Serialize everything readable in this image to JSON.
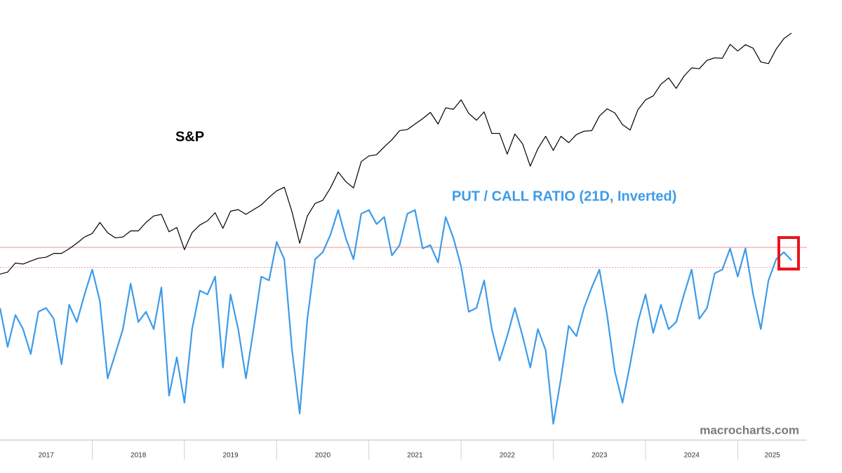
{
  "chart_data": {
    "type": "line",
    "x": [
      2017,
      2017.083,
      2017.167,
      2017.25,
      2017.333,
      2017.417,
      2017.5,
      2017.583,
      2017.667,
      2017.75,
      2017.833,
      2017.917,
      2018,
      2018.083,
      2018.167,
      2018.25,
      2018.333,
      2018.417,
      2018.5,
      2018.583,
      2018.667,
      2018.75,
      2018.833,
      2018.917,
      2019,
      2019.083,
      2019.167,
      2019.25,
      2019.333,
      2019.417,
      2019.5,
      2019.583,
      2019.667,
      2019.75,
      2019.833,
      2019.917,
      2020,
      2020.083,
      2020.167,
      2020.25,
      2020.333,
      2020.417,
      2020.5,
      2020.583,
      2020.667,
      2020.75,
      2020.833,
      2020.917,
      2021,
      2021.083,
      2021.167,
      2021.25,
      2021.333,
      2021.417,
      2021.5,
      2021.583,
      2021.667,
      2021.75,
      2021.833,
      2021.917,
      2022,
      2022.083,
      2022.167,
      2022.25,
      2022.333,
      2022.417,
      2022.5,
      2022.583,
      2022.667,
      2022.75,
      2022.833,
      2022.917,
      2023,
      2023.083,
      2023.167,
      2023.25,
      2023.333,
      2023.417,
      2023.5,
      2023.583,
      2023.667,
      2023.75,
      2023.833,
      2023.917,
      2024,
      2024.083,
      2024.167,
      2024.25,
      2024.333,
      2024.417,
      2024.5,
      2024.583,
      2024.667,
      2024.75,
      2024.833,
      2024.917,
      2025,
      2025.083,
      2025.167,
      2025.25,
      2025.333,
      2025.417,
      2025.5,
      2025.583
    ],
    "series": [
      {
        "name": "S&P",
        "color": "#000000",
        "axis": "y",
        "values": [
          2260,
          2280,
          2370,
          2360,
          2390,
          2420,
          2430,
          2470,
          2470,
          2520,
          2580,
          2650,
          2690,
          2820,
          2700,
          2640,
          2650,
          2720,
          2720,
          2820,
          2900,
          2920,
          2710,
          2760,
          2510,
          2700,
          2790,
          2840,
          2940,
          2750,
          2960,
          2980,
          2920,
          2980,
          3040,
          3140,
          3230,
          3280,
          2950,
          2580,
          2900,
          3060,
          3100,
          3270,
          3500,
          3360,
          3270,
          3660,
          3750,
          3770,
          3900,
          4020,
          4180,
          4200,
          4300,
          4400,
          4520,
          4300,
          4610,
          4580,
          4770,
          4500,
          4370,
          4530,
          4130,
          4130,
          3780,
          4120,
          3950,
          3590,
          3870,
          4080,
          3840,
          4080,
          3970,
          4110,
          4170,
          4180,
          4450,
          4590,
          4510,
          4290,
          4190,
          4570,
          4770,
          4850,
          5100,
          5240,
          5010,
          5280,
          5470,
          5450,
          5650,
          5710,
          5700,
          6050,
          5880,
          6040,
          5950,
          5610,
          5570,
          5930,
          6200,
          6350
        ]
      },
      {
        "name": "PUT / CALL RATIO (21D, Inverted)",
        "color": "#3d9be9",
        "axis": "y2",
        "values": [
          1.056,
          1.128,
          1.069,
          1.095,
          1.141,
          1.063,
          1.056,
          1.076,
          1.16,
          1.05,
          1.082,
          1.031,
          0.985,
          1.043,
          1.186,
          1.141,
          1.095,
          1.011,
          1.082,
          1.063,
          1.095,
          1.018,
          1.218,
          1.147,
          1.231,
          1.095,
          1.024,
          1.031,
          0.998,
          1.166,
          1.031,
          1.095,
          1.186,
          1.095,
          0.998,
          1.005,
          0.934,
          0.966,
          1.134,
          1.251,
          1.076,
          0.966,
          0.953,
          0.921,
          0.875,
          0.927,
          0.966,
          0.882,
          0.875,
          0.901,
          0.888,
          0.959,
          0.94,
          0.882,
          0.875,
          0.946,
          0.94,
          0.972,
          0.888,
          0.927,
          0.979,
          1.063,
          1.056,
          1.005,
          1.095,
          1.153,
          1.108,
          1.056,
          1.108,
          1.166,
          1.095,
          1.134,
          1.27,
          1.186,
          1.089,
          1.108,
          1.056,
          1.018,
          0.985,
          1.069,
          1.173,
          1.231,
          1.16,
          1.082,
          1.031,
          1.102,
          1.05,
          1.095,
          1.082,
          1.031,
          0.985,
          1.076,
          1.056,
          0.992,
          0.985,
          0.946,
          0.998,
          0.946,
          1.031,
          1.095,
          1.005,
          0.966,
          0.953,
          0.968
        ]
      }
    ],
    "xlim": [
      2017,
      2025.75
    ],
    "xticks": [
      2017,
      2018,
      2019,
      2020,
      2021,
      2022,
      2023,
      2024,
      2025
    ],
    "ylim": [
      1110,
      7100
    ],
    "ylog": true,
    "y2lim": [
      0.5,
      1.3
    ],
    "y2_inverted": true,
    "reference_lines": [
      {
        "axis": "y2",
        "value": 0.944,
        "style": "solid",
        "color": "#f4a6a6"
      },
      {
        "axis": "y2",
        "value": 0.981,
        "style": "dotted",
        "color": "#f4a6a6"
      }
    ],
    "watermark": "macrocharts.com"
  }
}
